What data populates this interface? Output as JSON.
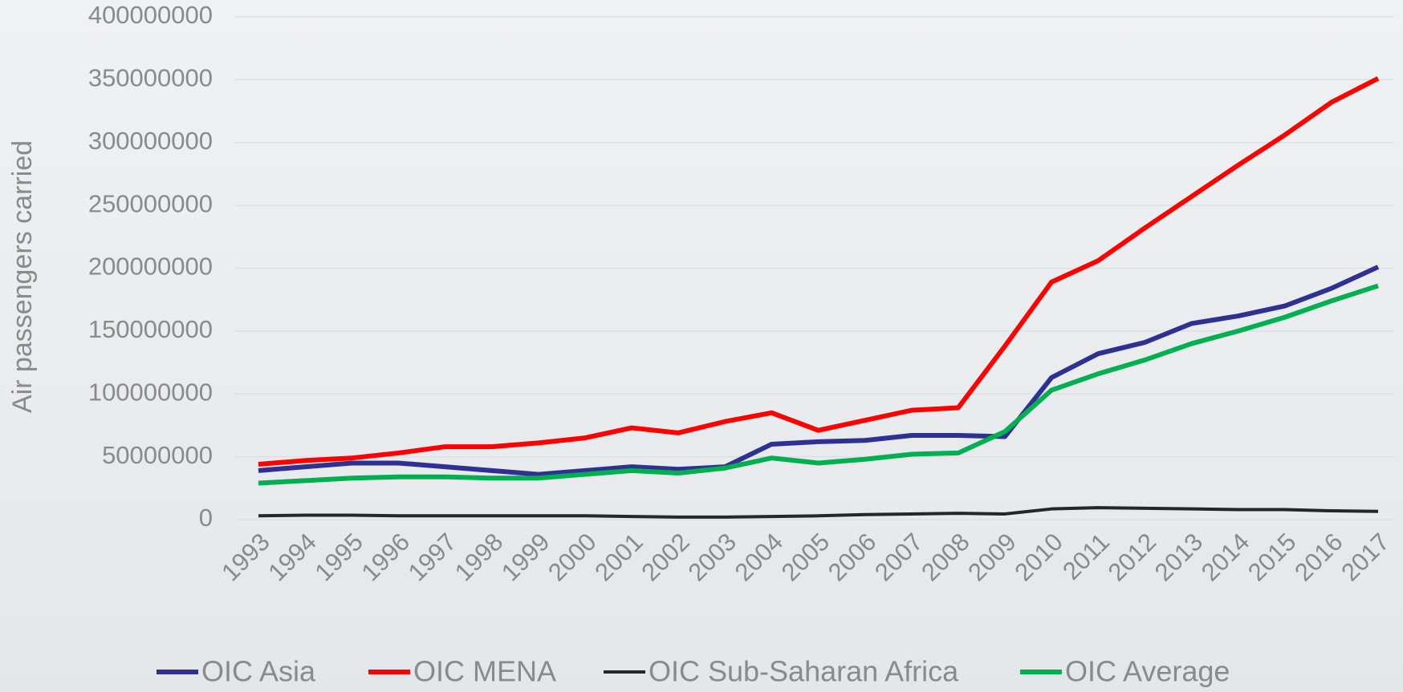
{
  "chart_data": {
    "type": "line",
    "y_label": "Air passengers carried",
    "categories": [
      "1993",
      "1994",
      "1995",
      "1996",
      "1997",
      "1998",
      "1999",
      "2000",
      "2001",
      "2002",
      "2003",
      "2004",
      "2005",
      "2006",
      "2007",
      "2008",
      "2009",
      "2010",
      "2011",
      "2012",
      "2013",
      "2014",
      "2015",
      "2016",
      "2017"
    ],
    "series": [
      {
        "name": "OIC Asia",
        "color": "#2e3192",
        "values": [
          39000000,
          42000000,
          45000000,
          45000000,
          42000000,
          39000000,
          36000000,
          39000000,
          42000000,
          40000000,
          42000000,
          60000000,
          62000000,
          63000000,
          67000000,
          67000000,
          66000000,
          113000000,
          132000000,
          141000000,
          156000000,
          162000000,
          170000000,
          184000000,
          201000000
        ]
      },
      {
        "name": "OIC MENA",
        "color": "#ff0000",
        "values": [
          44000000,
          47000000,
          49000000,
          53000000,
          58000000,
          58000000,
          61000000,
          65000000,
          73000000,
          69000000,
          78000000,
          85000000,
          71000000,
          79000000,
          87000000,
          89000000,
          138000000,
          189000000,
          206000000,
          232000000,
          257000000,
          282000000,
          306000000,
          332000000,
          351000000
        ]
      },
      {
        "name": "OIC Sub-Saharan Africa",
        "color": "#262626",
        "values": [
          3000000,
          3500000,
          3500000,
          3000000,
          3000000,
          3000000,
          3000000,
          3000000,
          2500000,
          2000000,
          2000000,
          2500000,
          3000000,
          4000000,
          4500000,
          5000000,
          4500000,
          8500000,
          9500000,
          9000000,
          8500000,
          8000000,
          8000000,
          7000000,
          6500000
        ]
      },
      {
        "name": "OIC Average",
        "color": "#00b050",
        "values": [
          29000000,
          31000000,
          33000000,
          34000000,
          34000000,
          33000000,
          33000000,
          36000000,
          39000000,
          37000000,
          41000000,
          49000000,
          45000000,
          48000000,
          52000000,
          53000000,
          70000000,
          103000000,
          116000000,
          127000000,
          140000000,
          150000000,
          161000000,
          174000000,
          186000000
        ]
      }
    ],
    "ylim": [
      0,
      400000000
    ],
    "yticks": [
      0,
      50000000,
      100000000,
      150000000,
      200000000,
      250000000,
      300000000,
      350000000,
      400000000
    ],
    "grid": true,
    "legend": "bottom"
  }
}
